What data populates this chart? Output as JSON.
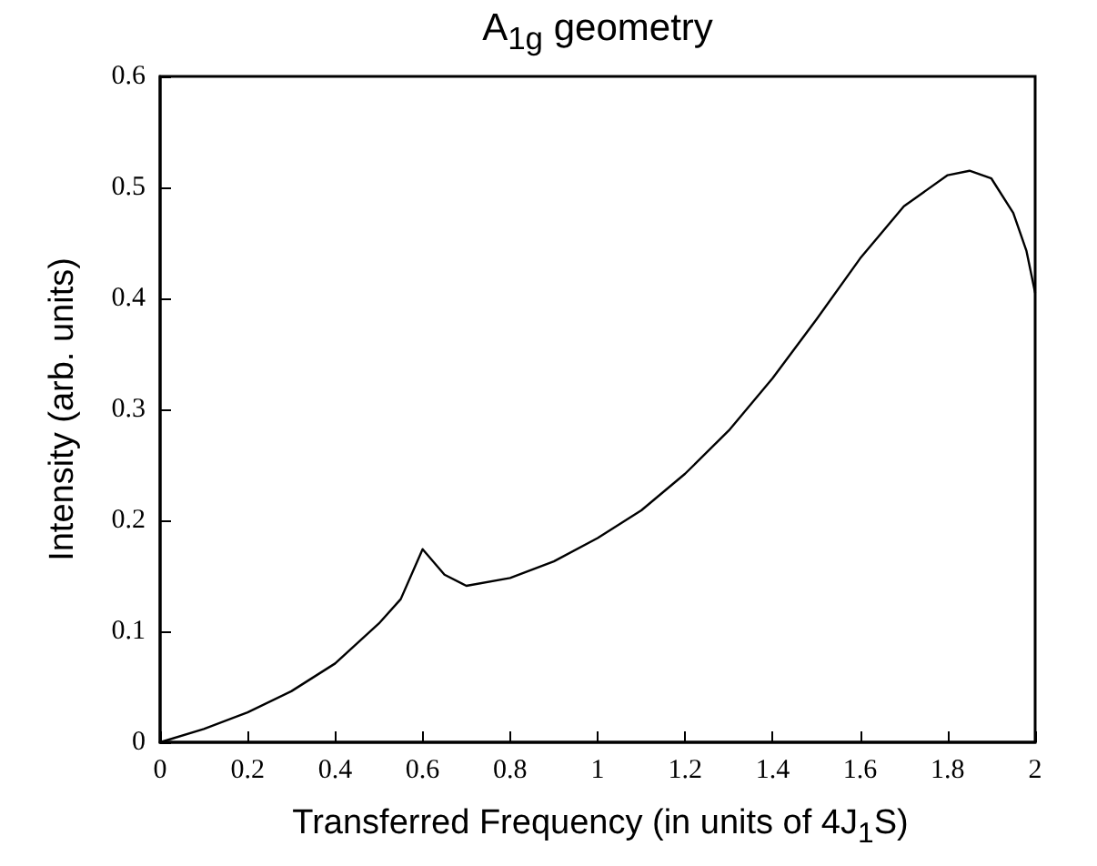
{
  "chart_data": {
    "type": "line",
    "title": "A$_{1g}$ geometry",
    "xlabel": "Transferred Frequency (in units of 4J$_{1}$S)",
    "ylabel": "Intensity (arb. units)",
    "x": [
      0,
      0.1,
      0.2,
      0.3,
      0.4,
      0.5,
      0.55,
      0.6,
      0.65,
      0.7,
      0.8,
      0.9,
      1,
      1.1,
      1.2,
      1.3,
      1.4,
      1.5,
      1.6,
      1.7,
      1.8,
      1.85,
      1.9,
      1.95,
      1.98,
      2
    ],
    "series": [
      {
        "color": "#000000",
        "values": [
          0,
          0.012,
          0.027,
          0.046,
          0.071,
          0.107,
          0.129,
          0.174,
          0.151,
          0.141,
          0.148,
          0.163,
          0.184,
          0.209,
          0.242,
          0.281,
          0.328,
          0.381,
          0.436,
          0.483,
          0.511,
          0.515,
          0.508,
          0.477,
          0.443,
          0.405
        ]
      }
    ],
    "xlim": [
      0,
      2
    ],
    "xticks": [
      0,
      0.2,
      0.4,
      0.6,
      0.8,
      1,
      1.2,
      1.4,
      1.6,
      1.8,
      2
    ],
    "ylim": [
      0,
      0.6
    ],
    "yticks": [
      0,
      0.1,
      0.2,
      0.3,
      0.4,
      0.5,
      0.6
    ],
    "marker": "none",
    "line_style": "solid"
  }
}
